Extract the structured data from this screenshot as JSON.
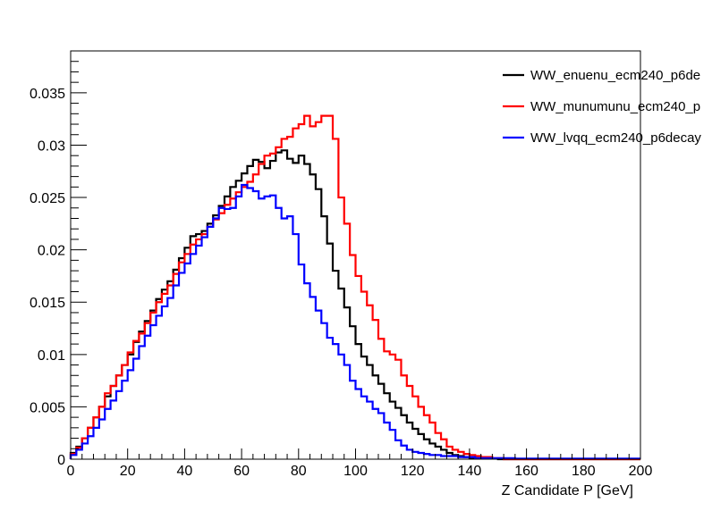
{
  "chart_data": {
    "type": "line",
    "style": "step-histogram",
    "title": "",
    "xlabel": "Z Candidate P [GeV]",
    "ylabel": "",
    "xlim": [
      0,
      200
    ],
    "ylim": [
      0,
      0.039
    ],
    "grid": false,
    "legend_position": "top-right",
    "x_ticks": [
      "0",
      "20",
      "40",
      "60",
      "80",
      "100",
      "120",
      "140",
      "160",
      "180",
      "200"
    ],
    "y_ticks": [
      "0",
      "0.005",
      "0.01",
      "0.015",
      "0.02",
      "0.025",
      "0.03",
      "0.035"
    ],
    "x_tick_values": [
      0,
      20,
      40,
      60,
      80,
      100,
      120,
      140,
      160,
      180,
      200
    ],
    "y_tick_values": [
      0,
      0.005,
      0.01,
      0.015,
      0.02,
      0.025,
      0.03,
      0.035
    ],
    "bin_width": 2,
    "series": [
      {
        "name": "WW_enuenu_ecm240_p6de",
        "color": "#000000",
        "values": [
          0.0006,
          0.0012,
          0.002,
          0.003,
          0.004,
          0.005,
          0.006,
          0.007,
          0.008,
          0.009,
          0.01,
          0.0112,
          0.0122,
          0.0132,
          0.0142,
          0.0153,
          0.0162,
          0.017,
          0.0181,
          0.0192,
          0.0202,
          0.0213,
          0.0215,
          0.0218,
          0.0225,
          0.0233,
          0.0242,
          0.0251,
          0.026,
          0.0266,
          0.0273,
          0.028,
          0.0286,
          0.0284,
          0.0278,
          0.0285,
          0.0293,
          0.0295,
          0.0287,
          0.0283,
          0.029,
          0.0282,
          0.0272,
          0.0258,
          0.0232,
          0.0206,
          0.018,
          0.0163,
          0.0145,
          0.0127,
          0.011,
          0.0098,
          0.009,
          0.008,
          0.0072,
          0.0063,
          0.0055,
          0.0049,
          0.0042,
          0.0035,
          0.0029,
          0.0024,
          0.0019,
          0.0015,
          0.0012,
          0.0009,
          0.0006,
          0.0004,
          0.0003,
          0.0002,
          0.0001,
          0.0001,
          0.0001,
          5e-05,
          5e-05,
          0,
          0,
          0,
          0,
          0,
          0,
          0,
          0,
          0,
          0,
          0,
          0,
          0,
          0,
          0,
          0,
          0,
          0,
          0,
          0,
          0,
          0,
          0,
          0,
          0
        ]
      },
      {
        "name": "WW_munumunu_ecm240_p",
        "color": "#ff0000",
        "values": [
          0.0005,
          0.0011,
          0.002,
          0.003,
          0.004,
          0.005,
          0.0063,
          0.007,
          0.008,
          0.009,
          0.0102,
          0.0113,
          0.012,
          0.013,
          0.014,
          0.015,
          0.0158,
          0.0166,
          0.0177,
          0.0188,
          0.0196,
          0.0205,
          0.021,
          0.0215,
          0.0222,
          0.0229,
          0.0235,
          0.0243,
          0.0249,
          0.0255,
          0.026,
          0.0265,
          0.0272,
          0.0282,
          0.029,
          0.0292,
          0.0298,
          0.0306,
          0.0308,
          0.0316,
          0.032,
          0.0328,
          0.0318,
          0.0322,
          0.0328,
          0.0328,
          0.0306,
          0.025,
          0.0225,
          0.0195,
          0.0175,
          0.016,
          0.0147,
          0.0133,
          0.0115,
          0.0103,
          0.01,
          0.0095,
          0.008,
          0.007,
          0.006,
          0.005,
          0.0042,
          0.0035,
          0.0025,
          0.0019,
          0.0012,
          0.0009,
          0.0007,
          0.0005,
          0.0004,
          0.0003,
          0.0002,
          0.0002,
          0.0001,
          0.0001,
          0,
          0,
          0,
          0,
          0,
          0,
          0,
          0,
          0,
          0,
          0,
          0,
          0,
          0,
          0,
          0,
          0,
          0,
          0,
          0,
          0,
          0,
          0,
          0
        ]
      },
      {
        "name": "WW_lvqq_ecm240_p6decay",
        "color": "#0000ff",
        "values": [
          0.0004,
          0.0009,
          0.0015,
          0.0022,
          0.003,
          0.0038,
          0.0048,
          0.0056,
          0.0065,
          0.0075,
          0.0085,
          0.0096,
          0.0108,
          0.0118,
          0.0128,
          0.0137,
          0.0146,
          0.0154,
          0.0166,
          0.0178,
          0.0187,
          0.0196,
          0.0204,
          0.0212,
          0.0222,
          0.023,
          0.024,
          0.0239,
          0.024,
          0.0251,
          0.0262,
          0.0259,
          0.0256,
          0.0249,
          0.0251,
          0.0252,
          0.024,
          0.023,
          0.0232,
          0.0215,
          0.0186,
          0.0168,
          0.0155,
          0.0142,
          0.013,
          0.0116,
          0.011,
          0.01,
          0.009,
          0.0075,
          0.0067,
          0.006,
          0.0055,
          0.0048,
          0.0044,
          0.0035,
          0.0028,
          0.0018,
          0.0013,
          0.0009,
          0.0007,
          0.0006,
          0.0005,
          0.0004,
          0.0004,
          0.0003,
          0.0003,
          0.0003,
          0.0002,
          0.0002,
          0.0002,
          0.0001,
          0.0001,
          0.0001,
          0.0001,
          0.0001,
          0.0001,
          0.0001,
          5e-05,
          5e-05,
          5e-05,
          5e-05,
          5e-05,
          5e-05,
          5e-05,
          5e-05,
          5e-05,
          5e-05,
          5e-05,
          5e-05,
          5e-05,
          5e-05,
          5e-05,
          5e-05,
          5e-05,
          5e-05,
          5e-05,
          5e-05,
          5e-05,
          5e-05
        ]
      }
    ]
  }
}
